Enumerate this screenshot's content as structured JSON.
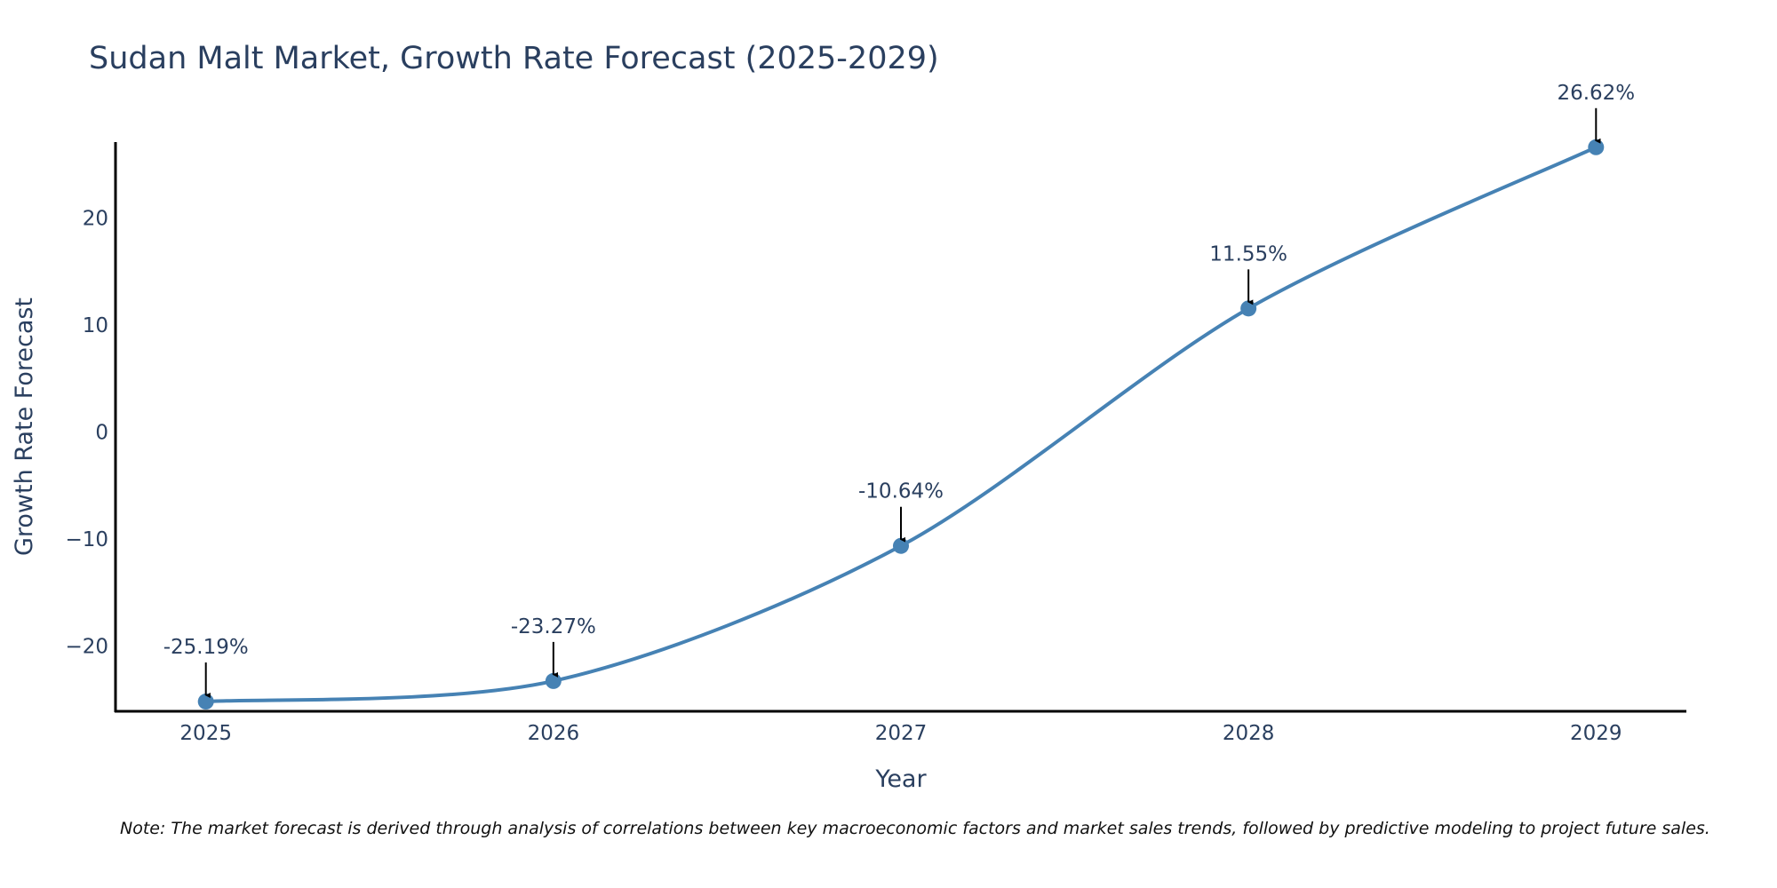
{
  "chart_data": {
    "type": "line",
    "title": "Sudan Malt Market, Growth Rate Forecast (2025-2029)",
    "xlabel": "Year",
    "ylabel": "Growth Rate Forecast",
    "x": [
      "2025",
      "2026",
      "2027",
      "2028",
      "2029"
    ],
    "series": [
      {
        "name": "Growth Rate Forecast",
        "values": [
          -25.19,
          -23.27,
          -10.64,
          11.55,
          26.62
        ],
        "labels": [
          "-25.19%",
          "-23.27%",
          "-10.64%",
          "11.55%",
          "26.62%"
        ]
      }
    ],
    "yticks": [
      -20,
      -10,
      0,
      10,
      20
    ],
    "ytick_labels": [
      "−20",
      "−10",
      "0",
      "10",
      "20"
    ],
    "ylim": [
      -26.1,
      27.1
    ],
    "xlim": [
      2024.74,
      2029.26
    ],
    "grid": false,
    "line_color": "#4682b4",
    "note": "Note: The market forecast is derived through analysis of correlations between key macroeconomic factors and market sales trends, followed by predictive modeling to project future sales."
  }
}
